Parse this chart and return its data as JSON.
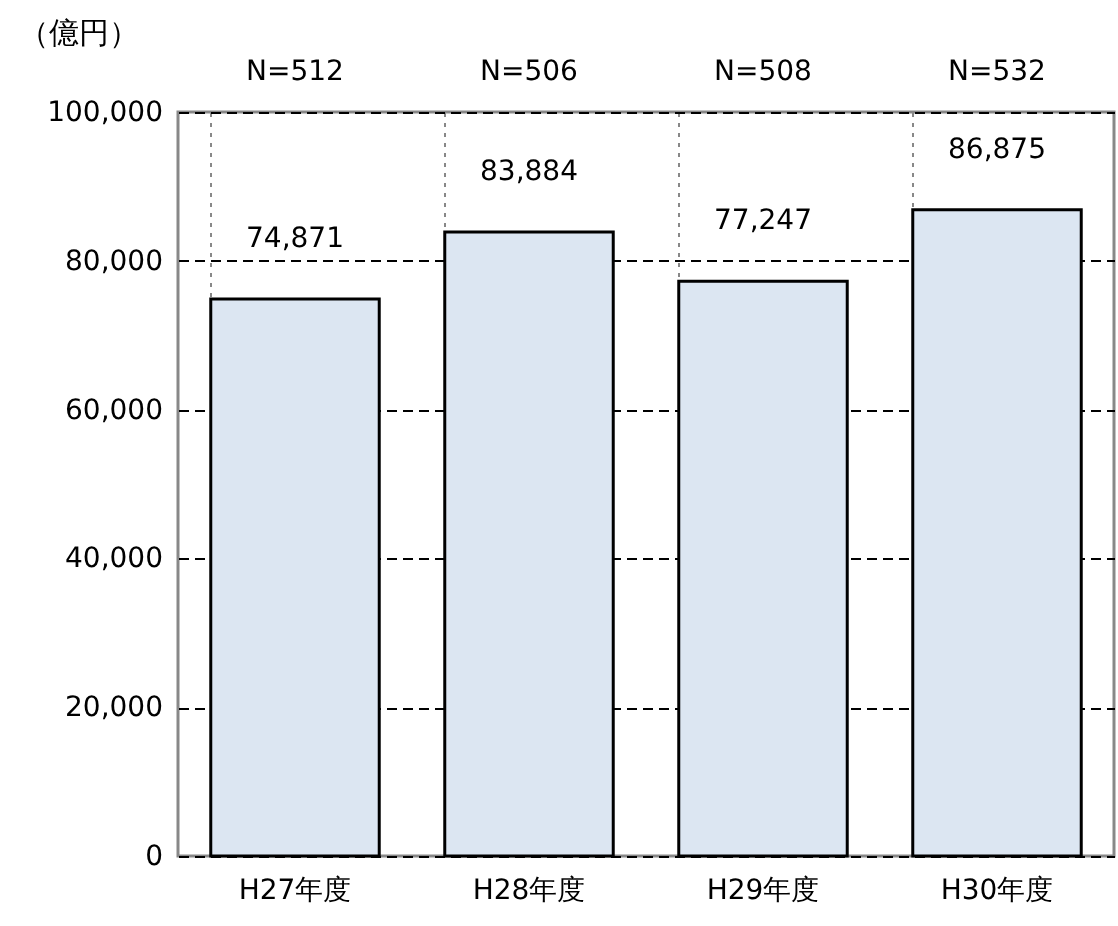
{
  "chart_data": {
    "type": "bar",
    "ylabel": "（億円）",
    "categories": [
      "H27年度",
      "H28年度",
      "H29年度",
      "H30年度"
    ],
    "values": [
      74871,
      83884,
      77247,
      86875
    ],
    "color": "#dce6f2",
    "ylim": [
      0,
      100000
    ],
    "yticks": [
      {
        "value": 0,
        "label": "0"
      },
      {
        "value": 20000,
        "label": "20,000"
      },
      {
        "value": 40000,
        "label": "40,000"
      },
      {
        "value": 60000,
        "label": "60,000"
      },
      {
        "value": 80000,
        "label": "80,000"
      },
      {
        "value": 100000,
        "label": "100,000"
      }
    ],
    "grid": true,
    "value_labels": [
      "74,871",
      "83,884",
      "77,247",
      "86,875"
    ],
    "annotations": [
      "N=512",
      "N=506",
      "N=508",
      "N=532"
    ]
  }
}
